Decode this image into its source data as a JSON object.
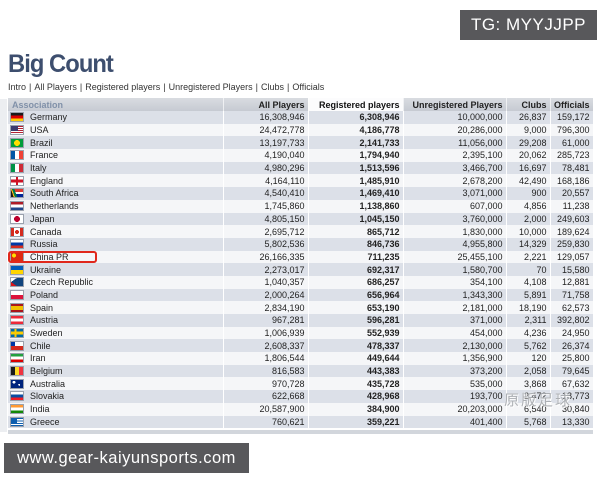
{
  "overlays": {
    "tg_badge": "TG: MYYJJPP",
    "site_badge": "www.gear-kaiyunsports.com",
    "watermark": "原版足球"
  },
  "page": {
    "title": "Big Count",
    "nav_separator": "|",
    "nav": [
      "Intro",
      "All Players",
      "Registered players",
      "Unregistered Players",
      "Clubs",
      "Officials"
    ]
  },
  "table": {
    "columns": [
      "Association",
      "All Players",
      "Registered players",
      "Unregistered Players",
      "Clubs",
      "Officials"
    ],
    "sorted_column": "Registered players",
    "rows": [
      {
        "flag": "de",
        "association": "Germany",
        "all_players": "16,308,946",
        "registered": "6,308,946",
        "unregistered": "10,000,000",
        "clubs": "26,837",
        "officials": "159,172",
        "highlighted": false
      },
      {
        "flag": "us",
        "association": "USA",
        "all_players": "24,472,778",
        "registered": "4,186,778",
        "unregistered": "20,286,000",
        "clubs": "9,000",
        "officials": "796,300",
        "highlighted": false
      },
      {
        "flag": "br",
        "association": "Brazil",
        "all_players": "13,197,733",
        "registered": "2,141,733",
        "unregistered": "11,056,000",
        "clubs": "29,208",
        "officials": "61,000",
        "highlighted": false
      },
      {
        "flag": "fr",
        "association": "France",
        "all_players": "4,190,040",
        "registered": "1,794,940",
        "unregistered": "2,395,100",
        "clubs": "20,062",
        "officials": "285,723",
        "highlighted": false
      },
      {
        "flag": "it",
        "association": "Italy",
        "all_players": "4,980,296",
        "registered": "1,513,596",
        "unregistered": "3,466,700",
        "clubs": "16,697",
        "officials": "78,481",
        "highlighted": false
      },
      {
        "flag": "en",
        "association": "England",
        "all_players": "4,164,110",
        "registered": "1,485,910",
        "unregistered": "2,678,200",
        "clubs": "42,490",
        "officials": "168,186",
        "highlighted": false
      },
      {
        "flag": "za",
        "association": "South Africa",
        "all_players": "4,540,410",
        "registered": "1,469,410",
        "unregistered": "3,071,000",
        "clubs": "900",
        "officials": "20,557",
        "highlighted": false
      },
      {
        "flag": "nl",
        "association": "Netherlands",
        "all_players": "1,745,860",
        "registered": "1,138,860",
        "unregistered": "607,000",
        "clubs": "4,856",
        "officials": "11,238",
        "highlighted": false
      },
      {
        "flag": "jp",
        "association": "Japan",
        "all_players": "4,805,150",
        "registered": "1,045,150",
        "unregistered": "3,760,000",
        "clubs": "2,000",
        "officials": "249,603",
        "highlighted": false
      },
      {
        "flag": "ca",
        "association": "Canada",
        "all_players": "2,695,712",
        "registered": "865,712",
        "unregistered": "1,830,000",
        "clubs": "10,000",
        "officials": "189,624",
        "highlighted": false
      },
      {
        "flag": "ru",
        "association": "Russia",
        "all_players": "5,802,536",
        "registered": "846,736",
        "unregistered": "4,955,800",
        "clubs": "14,329",
        "officials": "259,830",
        "highlighted": false
      },
      {
        "flag": "cn",
        "association": "China PR",
        "all_players": "26,166,335",
        "registered": "711,235",
        "unregistered": "25,455,100",
        "clubs": "2,221",
        "officials": "129,057",
        "highlighted": true
      },
      {
        "flag": "ua",
        "association": "Ukraine",
        "all_players": "2,273,017",
        "registered": "692,317",
        "unregistered": "1,580,700",
        "clubs": "70",
        "officials": "15,580",
        "highlighted": false
      },
      {
        "flag": "cz",
        "association": "Czech Republic",
        "all_players": "1,040,357",
        "registered": "686,257",
        "unregistered": "354,100",
        "clubs": "4,108",
        "officials": "12,881",
        "highlighted": false
      },
      {
        "flag": "pl",
        "association": "Poland",
        "all_players": "2,000,264",
        "registered": "656,964",
        "unregistered": "1,343,300",
        "clubs": "5,891",
        "officials": "71,758",
        "highlighted": false
      },
      {
        "flag": "es",
        "association": "Spain",
        "all_players": "2,834,190",
        "registered": "653,190",
        "unregistered": "2,181,000",
        "clubs": "18,190",
        "officials": "62,573",
        "highlighted": false
      },
      {
        "flag": "at",
        "association": "Austria",
        "all_players": "967,281",
        "registered": "596,281",
        "unregistered": "371,000",
        "clubs": "2,311",
        "officials": "392,802",
        "highlighted": false
      },
      {
        "flag": "se",
        "association": "Sweden",
        "all_players": "1,006,939",
        "registered": "552,939",
        "unregistered": "454,000",
        "clubs": "4,236",
        "officials": "24,950",
        "highlighted": false
      },
      {
        "flag": "cl",
        "association": "Chile",
        "all_players": "2,608,337",
        "registered": "478,337",
        "unregistered": "2,130,000",
        "clubs": "5,762",
        "officials": "26,374",
        "highlighted": false
      },
      {
        "flag": "ir",
        "association": "Iran",
        "all_players": "1,806,544",
        "registered": "449,644",
        "unregistered": "1,356,900",
        "clubs": "120",
        "officials": "25,800",
        "highlighted": false
      },
      {
        "flag": "be",
        "association": "Belgium",
        "all_players": "816,583",
        "registered": "443,383",
        "unregistered": "373,200",
        "clubs": "2,058",
        "officials": "79,645",
        "highlighted": false
      },
      {
        "flag": "au",
        "association": "Australia",
        "all_players": "970,728",
        "registered": "435,728",
        "unregistered": "535,000",
        "clubs": "3,868",
        "officials": "67,632",
        "highlighted": false
      },
      {
        "flag": "sk",
        "association": "Slovakia",
        "all_players": "622,668",
        "registered": "428,968",
        "unregistered": "193,700",
        "clubs": "2,472",
        "officials": "18,773",
        "highlighted": false
      },
      {
        "flag": "in",
        "association": "India",
        "all_players": "20,587,900",
        "registered": "384,900",
        "unregistered": "20,203,000",
        "clubs": "6,540",
        "officials": "30,840",
        "highlighted": false
      },
      {
        "flag": "gr",
        "association": "Greece",
        "all_players": "760,621",
        "registered": "359,221",
        "unregistered": "401,400",
        "clubs": "5,768",
        "officials": "13,330",
        "highlighted": false
      }
    ]
  },
  "colors": {
    "badge_bg": "#58585b",
    "title": "#3d4e6e",
    "row_alt": "#dce0e8",
    "highlight_red": "#e0281c",
    "header_assoc_text": "#8191a9"
  }
}
